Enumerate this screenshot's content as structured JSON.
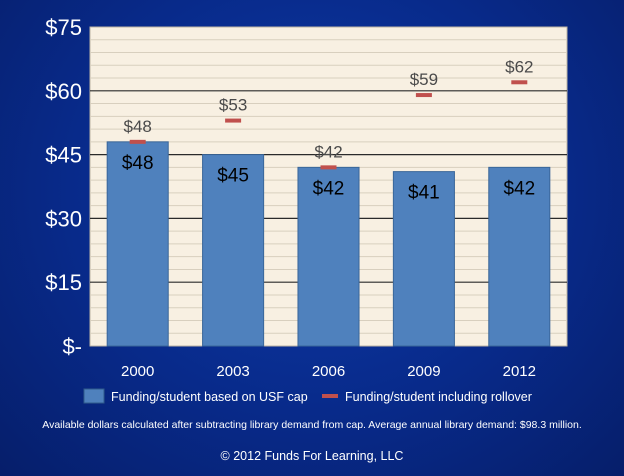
{
  "chart_data": {
    "type": "bar",
    "categories": [
      "2000",
      "2003",
      "2006",
      "2009",
      "2012"
    ],
    "series": [
      {
        "name": "Funding/student based on USF cap",
        "kind": "bar",
        "values": [
          48,
          45,
          42,
          41,
          42
        ],
        "labels": [
          "$48",
          "$45",
          "$42",
          "$41",
          "$42"
        ],
        "color": "#4f81bd"
      },
      {
        "name": "Funding/student including rollover",
        "kind": "marker",
        "values": [
          48,
          53,
          42,
          59,
          62
        ],
        "labels": [
          "$48",
          "$53",
          "$42",
          "$59",
          "$62"
        ],
        "color": "#c0504d"
      }
    ],
    "y_ticks": [
      {
        "value": 0,
        "label": "$-"
      },
      {
        "value": 15,
        "label": "$15"
      },
      {
        "value": 30,
        "label": "$30"
      },
      {
        "value": 45,
        "label": "$45"
      },
      {
        "value": 60,
        "label": "$60"
      },
      {
        "value": 75,
        "label": "$75"
      }
    ],
    "ylim": [
      0,
      75
    ],
    "grid": true,
    "legend_position": "bottom",
    "plot_background": "#f8f0e2"
  },
  "footnote": "Available dollars calculated after subtracting library demand from cap. Average annual library demand:  $98.3 million.",
  "copyright": "© 2012 Funds For Learning, LLC"
}
